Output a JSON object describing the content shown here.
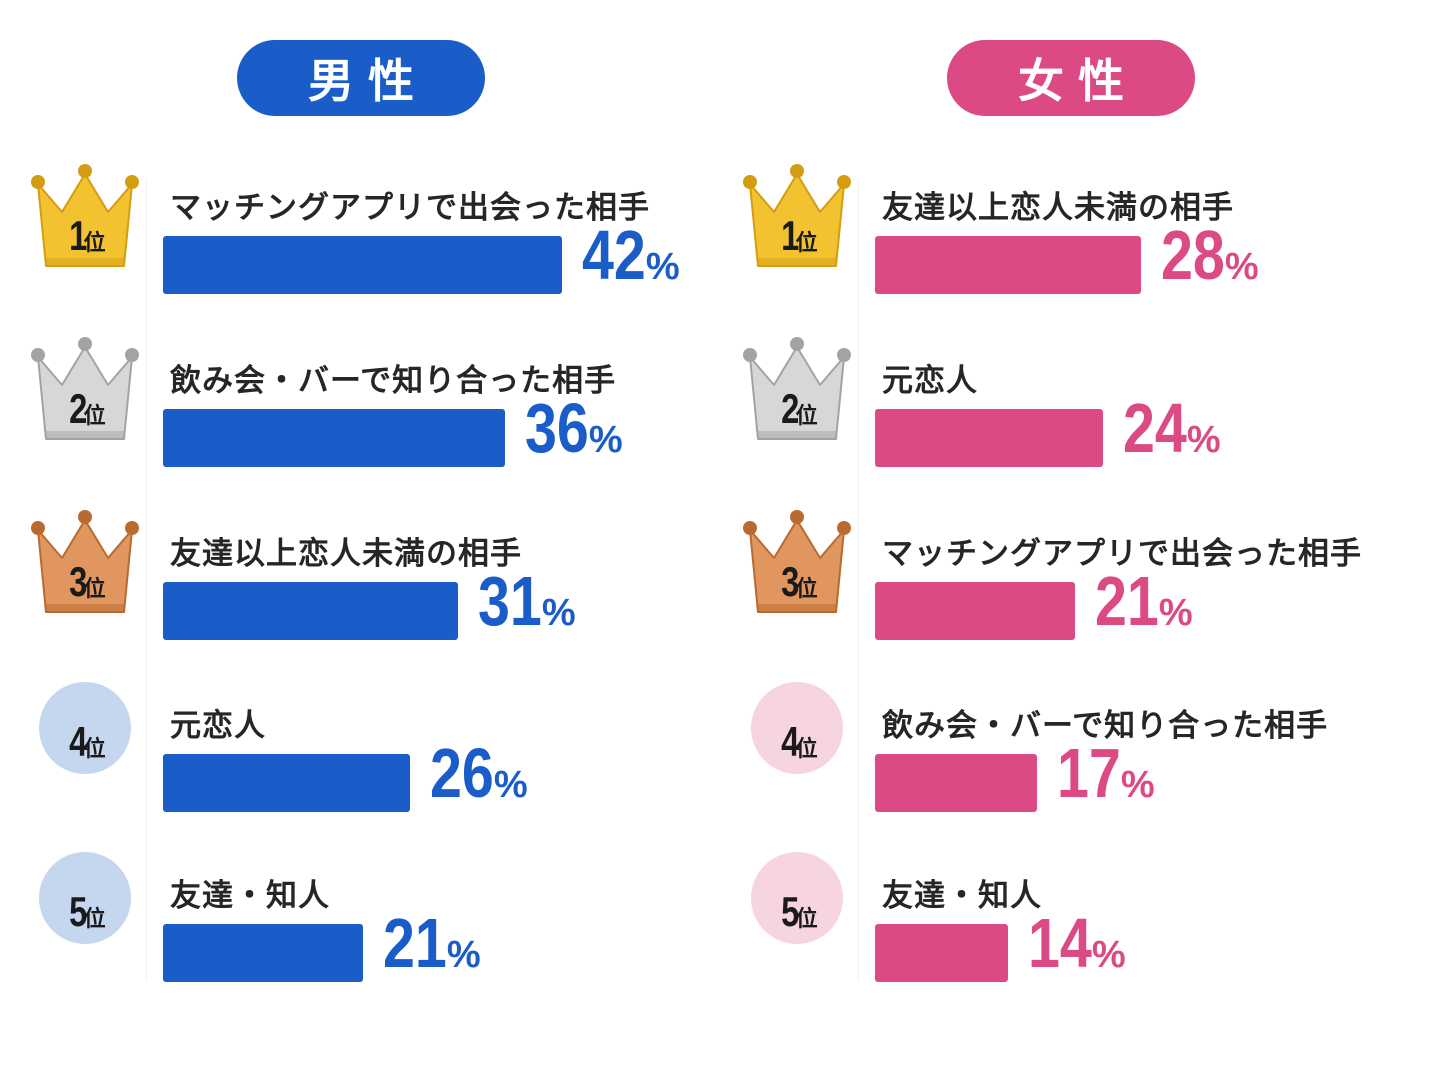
{
  "rank_suffix": "位",
  "percent_sign": "%",
  "colors": {
    "male": "#1a5dc8",
    "female": "#db4a85",
    "gold": "#f2c230",
    "gold_dark": "#d39d12",
    "silver": "#d7d7d7",
    "silver_dark": "#a3a3a3",
    "bronze": "#e0965e",
    "bronze_dark": "#b86a30",
    "male_circle": "#c5d6ef",
    "female_circle": "#f6d4e2"
  },
  "chart_data": [
    {
      "type": "bar",
      "title": "男性",
      "categories": [
        "マッチングアプリで出会った相手",
        "飲み会・バーで知り合った相手",
        "友達以上恋人未満の相手",
        "元恋人",
        "友達・知人"
      ],
      "values": [
        42,
        36,
        31,
        26,
        21
      ],
      "ranks": [
        "1",
        "2",
        "3",
        "4",
        "5"
      ],
      "unit": "%"
    },
    {
      "type": "bar",
      "title": "女性",
      "categories": [
        "友達以上恋人未満の相手",
        "元恋人",
        "マッチングアプリで出会った相手",
        "飲み会・バーで知り合った相手",
        "友達・知人"
      ],
      "values": [
        28,
        24,
        21,
        17,
        14
      ],
      "ranks": [
        "1",
        "2",
        "3",
        "4",
        "5"
      ],
      "unit": "%"
    }
  ]
}
